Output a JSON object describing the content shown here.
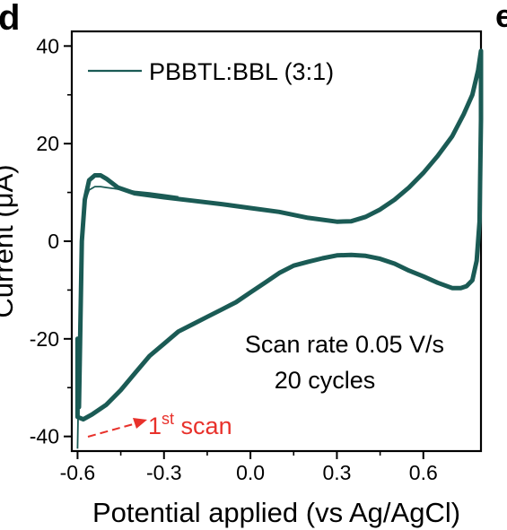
{
  "panel_labels": {
    "left": "d",
    "right": "e"
  },
  "chart_data": {
    "type": "line",
    "title": "",
    "xlabel": "Potential applied (vs Ag/AgCl)",
    "ylabel": "Current (μA)",
    "xlim": [
      -0.62,
      0.8
    ],
    "ylim": [
      -43,
      43
    ],
    "xticks": [
      -0.6,
      -0.3,
      0.0,
      0.3,
      0.6
    ],
    "xtick_labels": [
      "-0.6",
      "-0.3",
      "0.0",
      "0.3",
      "0.6"
    ],
    "yticks": [
      -40,
      -20,
      0,
      20,
      40
    ],
    "ytick_labels": [
      "-40",
      "-20",
      "0",
      "20",
      "40"
    ],
    "grid": false,
    "legend_position": "top-left",
    "colors": {
      "series": "#1b5b55",
      "annotation": "#e8312b",
      "axis": "#000000"
    },
    "series": [
      {
        "name": "PBBTL:BBL (3:1)",
        "description_role": "steady-state cycles (forward and reverse sweep)",
        "x": [
          -0.595,
          -0.585,
          -0.575,
          -0.56,
          -0.54,
          -0.52,
          -0.5,
          -0.46,
          -0.4,
          -0.3,
          -0.2,
          -0.1,
          0.0,
          0.1,
          0.2,
          0.3,
          0.35,
          0.4,
          0.45,
          0.5,
          0.55,
          0.6,
          0.65,
          0.7,
          0.74,
          0.77,
          0.79,
          0.8,
          0.8,
          0.795,
          0.785,
          0.77,
          0.75,
          0.73,
          0.7,
          0.65,
          0.6,
          0.55,
          0.5,
          0.45,
          0.4,
          0.35,
          0.3,
          0.25,
          0.2,
          0.15,
          0.1,
          0.05,
          0.0,
          -0.05,
          -0.1,
          -0.15,
          -0.2,
          -0.25,
          -0.3,
          -0.35,
          -0.4,
          -0.45,
          -0.5,
          -0.55,
          -0.58,
          -0.6,
          -0.6,
          -0.595
        ],
        "y": [
          -34,
          0,
          8.5,
          12.5,
          13.5,
          13.5,
          12.8,
          11,
          9.8,
          9.0,
          8.3,
          7.6,
          6.8,
          6.0,
          4.8,
          4.0,
          4.1,
          5.0,
          6.5,
          8.5,
          11,
          14,
          17.5,
          21.5,
          26,
          30,
          35,
          39,
          25,
          4,
          -4,
          -8,
          -9.2,
          -9.6,
          -9.6,
          -8.5,
          -7.2,
          -6.0,
          -4.6,
          -3.6,
          -3.0,
          -2.8,
          -2.9,
          -3.5,
          -4.2,
          -5.0,
          -6.5,
          -8.5,
          -10.5,
          -12.5,
          -14,
          -15.5,
          -17,
          -18.5,
          -21,
          -23.5,
          -27,
          -30.5,
          -33.5,
          -35.5,
          -36.5,
          -36,
          -20,
          -34
        ]
      },
      {
        "name": "1st scan",
        "description_role": "first cycle (initial sweep)",
        "x": [
          -0.6,
          -0.598,
          -0.595,
          -0.59,
          -0.585,
          -0.575,
          -0.56,
          -0.54,
          -0.52,
          -0.5,
          -0.45,
          -0.4,
          -0.35,
          -0.3,
          -0.25
        ],
        "y": [
          -42.5,
          -35,
          -20,
          -5,
          3,
          8,
          10.5,
          11.2,
          11.2,
          11,
          10.6,
          10.2,
          9.9,
          9.5,
          9.1
        ]
      }
    ],
    "annotations": [
      {
        "text": "PBBTL:BBL (3:1)",
        "role": "legend"
      },
      {
        "text": "Scan rate 0.05 V/s",
        "role": "note"
      },
      {
        "text": "20 cycles",
        "role": "note"
      },
      {
        "text_base": "1",
        "text_sup": "st",
        "text_tail": " scan",
        "role": "arrow-label"
      }
    ]
  }
}
